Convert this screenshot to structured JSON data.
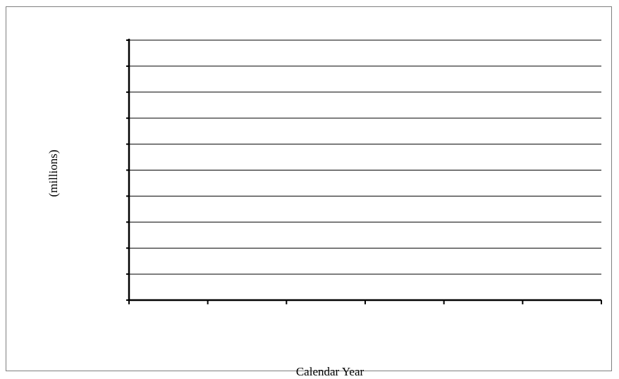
{
  "chart_data": {
    "type": "line",
    "title": "",
    "xlabel": "Calendar Year",
    "ylabel": "(millions)",
    "categories": [
      "",
      "",
      "",
      "",
      "",
      ""
    ],
    "series": [],
    "y_tick_count": 10,
    "grid": "horizontal",
    "legend": "none"
  },
  "colors": {
    "gridline": "#000000",
    "axis": "#000000",
    "frame": "#7f7f7f",
    "background": "#ffffff"
  }
}
